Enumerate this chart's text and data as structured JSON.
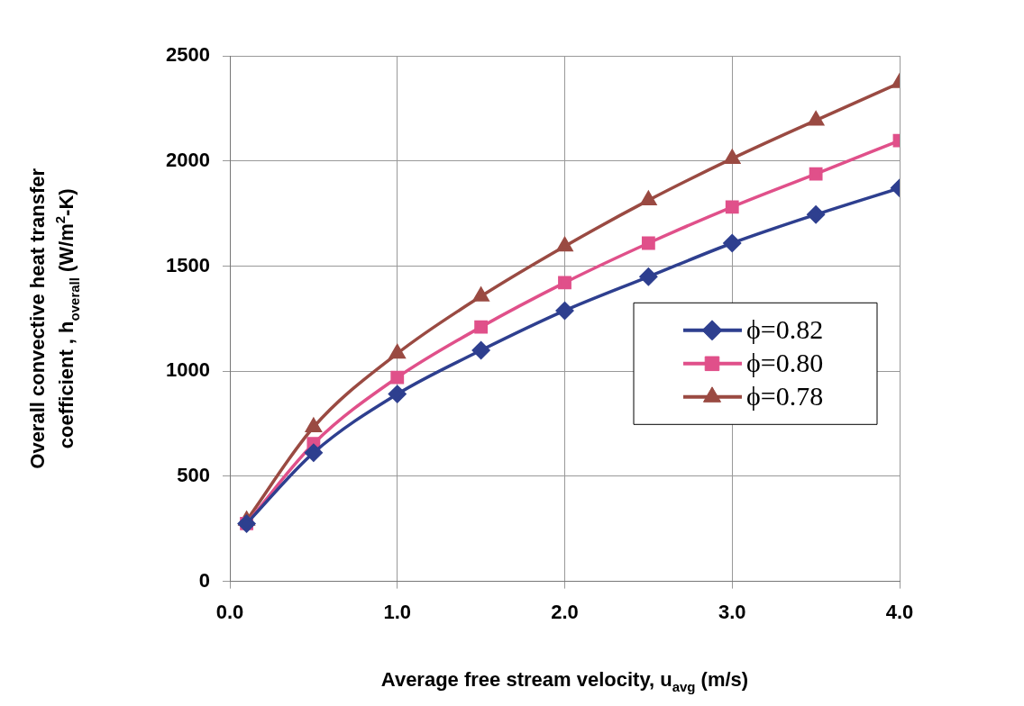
{
  "chart_data": {
    "type": "line",
    "xlabel": "Average free stream velocity, u$_{avg}$ (m/s)",
    "ylabel": "Overall convective heat transfer\ncoefficient , h$_{overall}$ (W/m$^{2}$-K)",
    "x": [
      0.1,
      0.5,
      1.0,
      1.5,
      2.0,
      2.5,
      3.0,
      3.5,
      4.0
    ],
    "series": [
      {
        "name": "ϕ=0.82",
        "color": "#2e3f8f",
        "marker": "diamond",
        "values": [
          275,
          612,
          891,
          1099,
          1288,
          1449,
          1609,
          1745,
          1871
        ]
      },
      {
        "name": "ϕ=0.80",
        "color": "#e0508a",
        "marker": "square",
        "values": [
          275,
          655,
          970,
          1210,
          1421,
          1609,
          1781,
          1938,
          2097
        ]
      },
      {
        "name": "ϕ=0.78",
        "color": "#9a4a42",
        "marker": "triangle",
        "values": [
          290,
          734,
          1084,
          1356,
          1594,
          1813,
          2011,
          2193,
          2371
        ]
      }
    ],
    "xlim": [
      0,
      4
    ],
    "xticks": [
      {
        "value": 0,
        "label": "0.0"
      },
      {
        "value": 1,
        "label": "1.0"
      },
      {
        "value": 2,
        "label": "2.0"
      },
      {
        "value": 3,
        "label": "3.0"
      },
      {
        "value": 4,
        "label": "4.0"
      }
    ],
    "ylim": [
      0,
      2500
    ],
    "yticks": [
      0,
      500,
      1000,
      1500,
      2000,
      2500
    ],
    "grid": true,
    "legend": "right",
    "line_style": "solid"
  }
}
